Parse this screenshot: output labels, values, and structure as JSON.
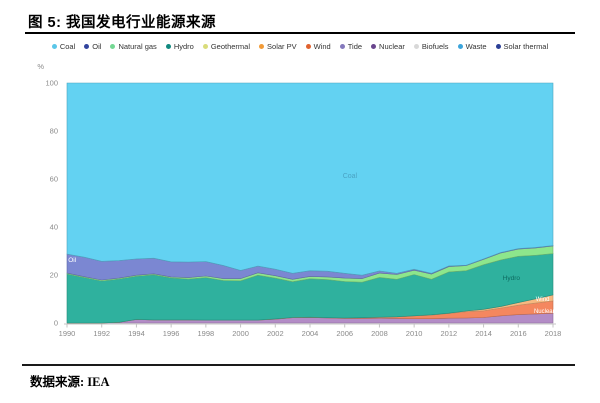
{
  "header": {
    "title": "图 5: 我国发电行业能源来源"
  },
  "legend": {
    "items": [
      {
        "label": "Coal",
        "color": "#5bc6e8"
      },
      {
        "label": "Oil",
        "color": "#32449e"
      },
      {
        "label": "Natural gas",
        "color": "#74d893"
      },
      {
        "label": "Hydro",
        "color": "#11897f"
      },
      {
        "label": "Geothermal",
        "color": "#d9dc7a"
      },
      {
        "label": "Solar PV",
        "color": "#f29b38"
      },
      {
        "label": "Wind",
        "color": "#e0622f"
      },
      {
        "label": "Tide",
        "color": "#8579bd"
      },
      {
        "label": "Nuclear",
        "color": "#69458d"
      },
      {
        "label": "Biofuels",
        "color": "#d8d8d8"
      },
      {
        "label": "Waste",
        "color": "#3ba4db"
      },
      {
        "label": "Solar thermal",
        "color": "#2b3f96"
      }
    ]
  },
  "chart_data": {
    "type": "area",
    "stacked": true,
    "title": "我国发电行业能源来源",
    "y_axis_label": "%",
    "ylim": [
      0,
      100
    ],
    "y_ticks": [
      0,
      20,
      40,
      60,
      80,
      100
    ],
    "x": [
      1990,
      1991,
      1992,
      1993,
      1994,
      1995,
      1996,
      1997,
      1998,
      1999,
      2000,
      2001,
      2002,
      2003,
      2004,
      2005,
      2006,
      2007,
      2008,
      2009,
      2010,
      2011,
      2012,
      2013,
      2014,
      2015,
      2016,
      2017,
      2018
    ],
    "x_tick_labels": [
      "1990",
      "1992",
      "1994",
      "1996",
      "1998",
      "2000",
      "2002",
      "2004",
      "2006",
      "2008",
      "2010",
      "2012",
      "2014",
      "2016",
      "2018"
    ],
    "grid": false,
    "legend_position": "top",
    "series": [
      {
        "name": "Nuclear",
        "color": "#b38cc6",
        "values": [
          0,
          0,
          0,
          0.3,
          1.5,
          1.3,
          1.3,
          1.3,
          1.2,
          1.2,
          1.2,
          1.2,
          1.6,
          2.2,
          2.3,
          2.1,
          1.9,
          1.9,
          2.0,
          1.9,
          1.8,
          1.8,
          2.0,
          2.1,
          2.3,
          3.0,
          3.5,
          3.8,
          4.1
        ]
      },
      {
        "name": "Wind",
        "color": "#f4875f",
        "values": [
          0,
          0,
          0,
          0,
          0,
          0,
          0,
          0,
          0,
          0,
          0,
          0,
          0.1,
          0.1,
          0.1,
          0.1,
          0.2,
          0.3,
          0.4,
          0.7,
          1.2,
          1.5,
          2.0,
          2.6,
          2.8,
          3.2,
          3.9,
          4.5,
          5.1
        ]
      },
      {
        "name": "Solar PV",
        "color": "#f7b981",
        "values": [
          0,
          0,
          0,
          0,
          0,
          0,
          0,
          0,
          0,
          0,
          0,
          0,
          0,
          0,
          0,
          0,
          0,
          0,
          0,
          0,
          0,
          0.1,
          0.1,
          0.3,
          0.6,
          0.7,
          1.1,
          1.8,
          2.5
        ]
      },
      {
        "name": "Hydro",
        "color": "#2fb19e",
        "values": [
          20.4,
          18.9,
          17.5,
          18.0,
          18.0,
          18.8,
          17.5,
          17.0,
          17.7,
          16.5,
          16.4,
          18.7,
          17.0,
          14.9,
          16.0,
          15.9,
          15.2,
          14.8,
          16.6,
          15.6,
          17.2,
          14.8,
          17.2,
          16.8,
          18.6,
          19.4,
          19.3,
          18.1,
          17.2
        ]
      },
      {
        "name": "Natural gas",
        "color": "#8de68c",
        "values": [
          0.4,
          0.4,
          0.4,
          0.4,
          0.4,
          0.4,
          0.4,
          0.6,
          0.7,
          0.8,
          0.9,
          1.0,
          1.0,
          1.0,
          1.0,
          1.1,
          1.4,
          1.5,
          1.8,
          2.0,
          1.8,
          2.2,
          2.2,
          2.1,
          2.2,
          2.9,
          3.0,
          3.1,
          3.2
        ]
      },
      {
        "name": "Oil",
        "color": "#7b87d2",
        "values": [
          7.9,
          8.1,
          7.8,
          7.3,
          6.8,
          6.5,
          6.3,
          6.5,
          6.0,
          5.5,
          3.4,
          2.8,
          2.7,
          2.5,
          2.4,
          2.4,
          2.0,
          1.4,
          0.9,
          0.5,
          0.4,
          0.3,
          0.3,
          0.2,
          0.2,
          0.2,
          0.2,
          0.2,
          0.2
        ]
      },
      {
        "name": "Coal",
        "color": "#63d2f2",
        "values": [
          71.3,
          72.6,
          74.3,
          74.0,
          73.3,
          73.0,
          74.5,
          74.6,
          74.4,
          76.0,
          78.1,
          76.3,
          77.6,
          79.3,
          78.2,
          78.4,
          79.3,
          80.1,
          78.3,
          79.3,
          77.6,
          79.3,
          76.2,
          75.9,
          73.3,
          70.6,
          69.0,
          68.5,
          67.7
        ]
      }
    ],
    "annotations": [
      {
        "text": "Coal",
        "year": 2006.3,
        "pct": 60.4,
        "color": "#4aa3c4",
        "size": 7
      },
      {
        "text": "Oil",
        "year": 1990.3,
        "pct": 25.4,
        "color": "#ffffff",
        "size": 6.5
      },
      {
        "text": "Hydro",
        "year": 2015.6,
        "pct": 17.9,
        "color": "#0d6b60",
        "size": 6.5
      },
      {
        "text": "Wind",
        "year": 2017.4,
        "pct": 9.2,
        "color": "#ffffff",
        "size": 6
      },
      {
        "text": "Nuclear",
        "year": 2017.5,
        "pct": 4.2,
        "color": "#ffffff",
        "size": 6
      }
    ]
  },
  "footer": {
    "source_label": "数据来源: IEA"
  }
}
